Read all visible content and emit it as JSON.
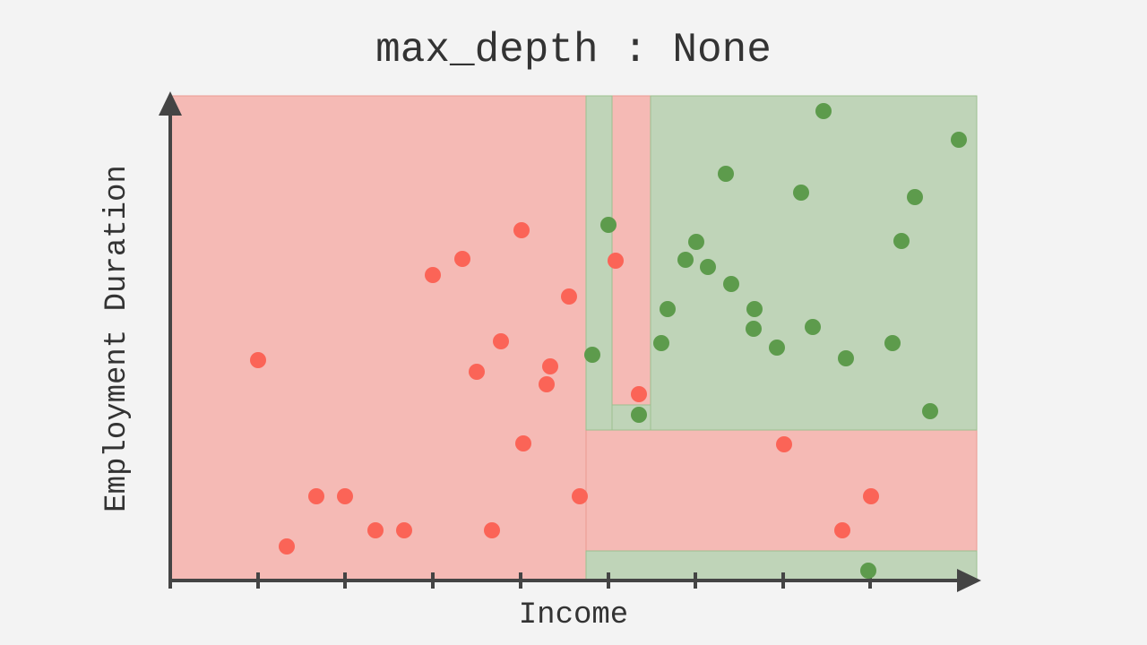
{
  "chart_data": {
    "type": "scatter",
    "title": "max_depth : None",
    "xlabel": "Income",
    "ylabel": "Employment Duration",
    "xlim": [
      0,
      900
    ],
    "ylim": [
      0,
      541
    ],
    "xticks": [
      0,
      98,
      195,
      293,
      391,
      489,
      586,
      684,
      781
    ],
    "regions": [
      {
        "x": [
          0,
          464
        ],
        "y": [
          0,
          541
        ],
        "color": "#f5bab5"
      },
      {
        "x": [
          493,
          536
        ],
        "y": [
          196,
          541
        ],
        "color": "#f5bab5"
      },
      {
        "x": [
          464,
          900
        ],
        "y": [
          33,
          168
        ],
        "color": "#f5bab5"
      },
      {
        "x": [
          464,
          493
        ],
        "y": [
          168,
          541
        ],
        "color": "#bfd4b8"
      },
      {
        "x": [
          493,
          536
        ],
        "y": [
          168,
          196
        ],
        "color": "#bfd4b8"
      },
      {
        "x": [
          536,
          900
        ],
        "y": [
          168,
          541
        ],
        "color": "#bfd4b8"
      },
      {
        "x": [
          464,
          900
        ],
        "y": [
          0,
          33
        ],
        "color": "#bfd4b8"
      }
    ],
    "series": [
      {
        "color": "#fb6457",
        "x": [
          98,
          130,
          163,
          195,
          229,
          261,
          293,
          326,
          342,
          359,
          369,
          392,
          394,
          420,
          424,
          445,
          457,
          497,
          523,
          685,
          750,
          782
        ],
        "values": [
          246,
          38,
          94,
          94,
          56,
          56,
          341,
          359,
          233,
          56,
          267,
          391,
          153,
          219,
          239,
          317,
          94,
          357,
          208,
          152,
          56,
          94
        ]
      },
      {
        "color": "#5d9b4c",
        "x": [
          471,
          489,
          523,
          548,
          555,
          575,
          587,
          600,
          620,
          626,
          651,
          652,
          677,
          704,
          717,
          729,
          754,
          779,
          806,
          816,
          831,
          848,
          880
        ],
        "values": [
          252,
          397,
          185,
          265,
          303,
          358,
          378,
          350,
          454,
          331,
          281,
          303,
          260,
          433,
          283,
          524,
          248,
          11,
          265,
          379,
          428,
          189,
          492
        ]
      }
    ]
  }
}
